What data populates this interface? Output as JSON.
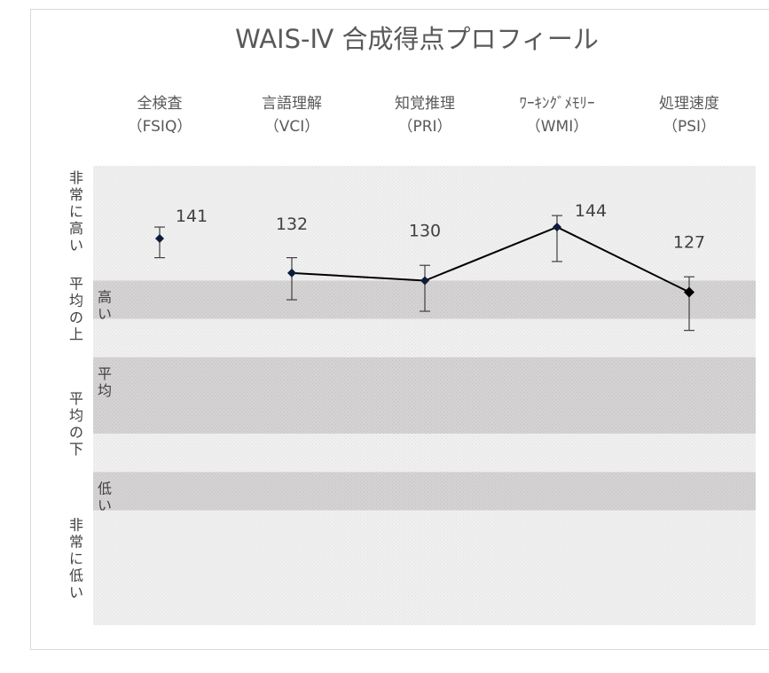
{
  "chart_data": {
    "type": "line",
    "title": "WAIS-Ⅳ 合成得点プロフィール",
    "categories": [
      {
        "name": "全検査",
        "abbr": "（FSIQ）"
      },
      {
        "name": "言語理解",
        "abbr": "（VCI）"
      },
      {
        "name": "知覚推理",
        "abbr": "（PRI）"
      },
      {
        "name": "ﾜｰｷﾝｸﾞﾒﾓﾘｰ",
        "abbr": "（WMI）"
      },
      {
        "name": "処理速度",
        "abbr": "（PSI）"
      }
    ],
    "values": [
      141,
      132,
      130,
      144,
      127
    ],
    "error_low": [
      136,
      125,
      122,
      135,
      117
    ],
    "error_high": [
      144,
      136,
      134,
      147,
      131
    ],
    "line_connects": [
      false,
      true,
      true,
      true,
      true
    ],
    "ylim": [
      40,
      160
    ],
    "bands": [
      {
        "label": "非常に高い",
        "from": 130,
        "to": 160,
        "shade": "light"
      },
      {
        "label": "高い",
        "from": 120,
        "to": 130,
        "shade": "dark"
      },
      {
        "label": "平均の上",
        "from": 110,
        "to": 120,
        "shade": "light"
      },
      {
        "label": "平均",
        "from": 90,
        "to": 110,
        "shade": "dark"
      },
      {
        "label": "平均の下",
        "from": 80,
        "to": 90,
        "shade": "light"
      },
      {
        "label": "低い",
        "from": 70,
        "to": 80,
        "shade": "dark"
      },
      {
        "label": "非常に低い",
        "from": 40,
        "to": 70,
        "shade": "light"
      }
    ],
    "colors": {
      "line": "#000000",
      "marker": "#0d1b3d",
      "band_light": "#efefef",
      "band_dark": "#d4d2d2",
      "text": "#595959"
    }
  }
}
